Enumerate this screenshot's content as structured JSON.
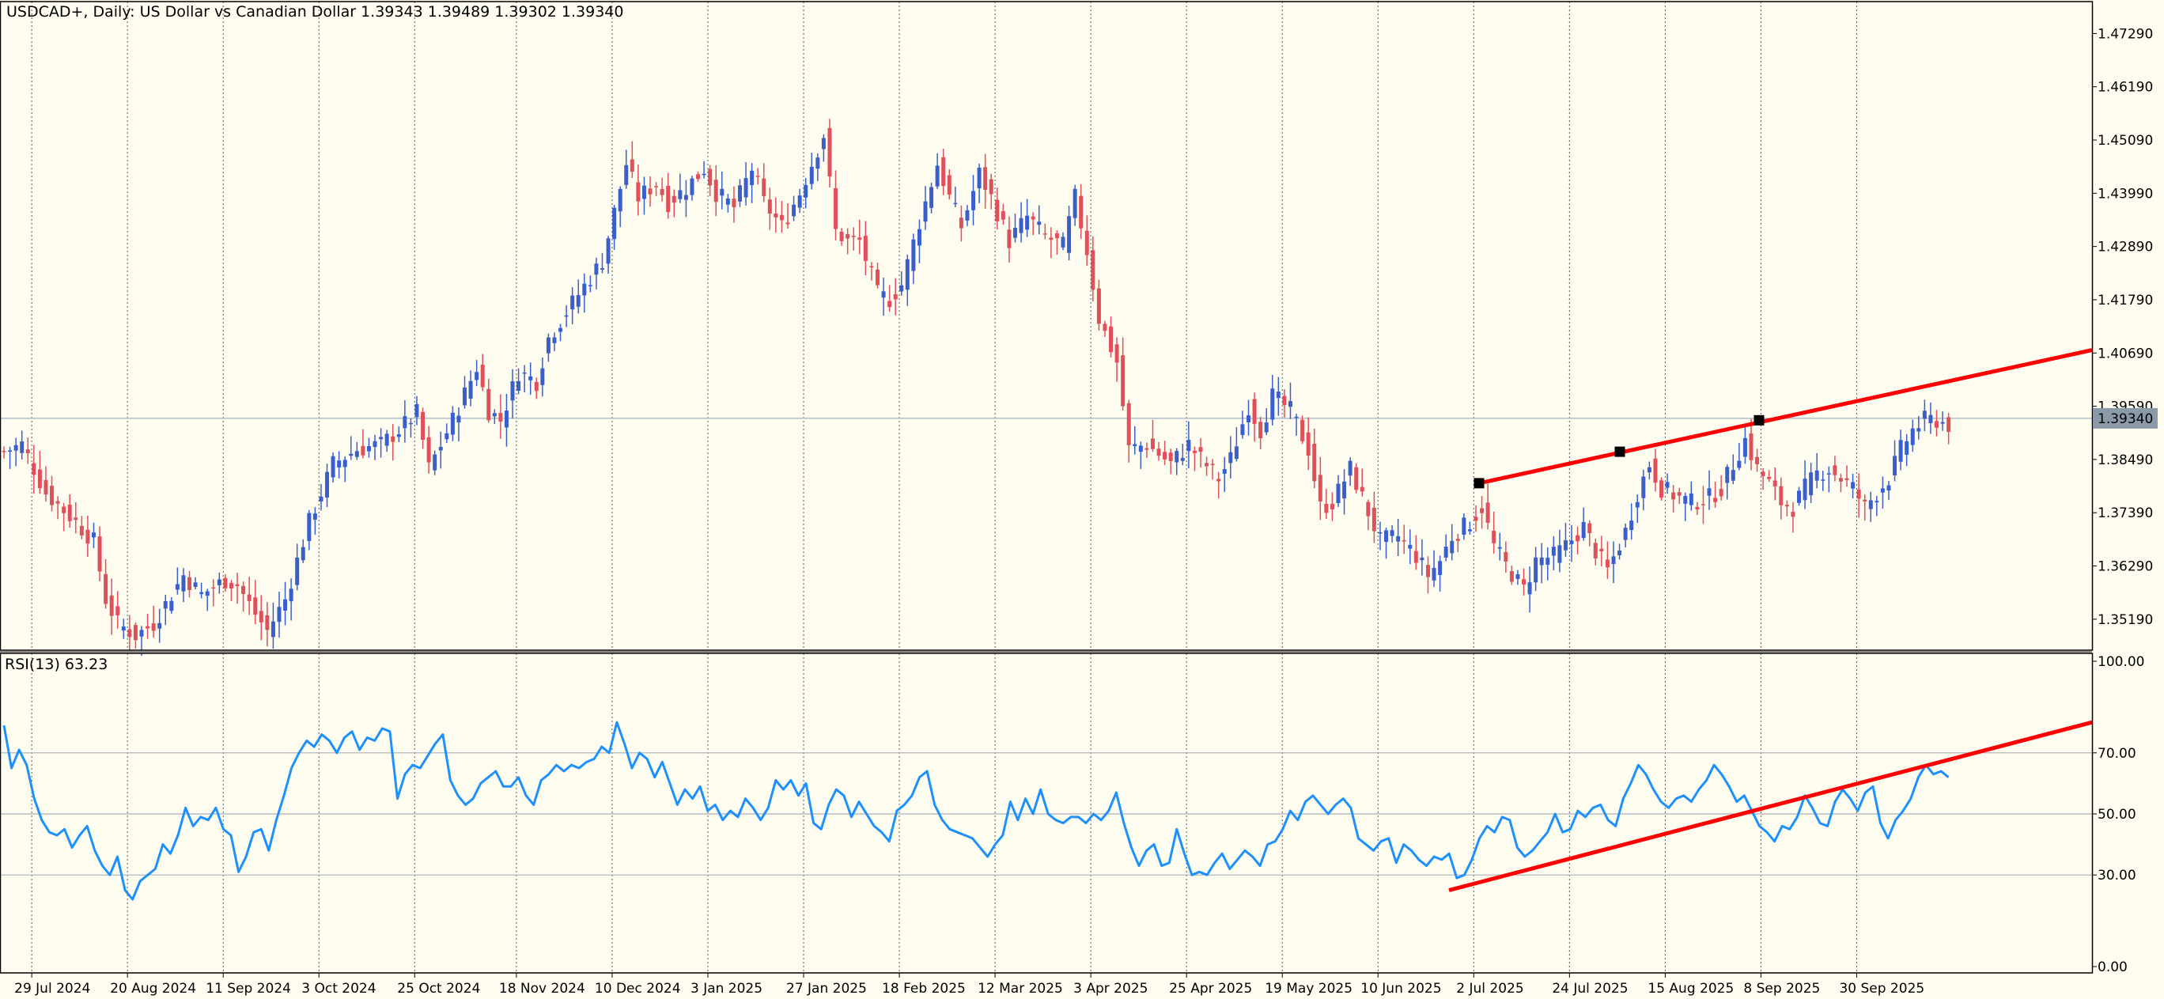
{
  "header": {
    "title": "USDCAD+, Daily:  US Dollar vs Canadian Dollar  1.39343 1.39489 1.39302 1.39340"
  },
  "rsi_header": "RSI(13) 63.23",
  "colors": {
    "background": "#fffcf0",
    "bull": "#3a5fcd",
    "bear": "#e0505a",
    "rsi_line": "#1e90ff",
    "trendline": "#ff0000",
    "grid": "#555555",
    "bid_line": "#b0bcc8",
    "price_label_bg": "#8a9aa8"
  },
  "price_axis": {
    "ticks": [
      "1.47290",
      "1.46190",
      "1.45090",
      "1.43990",
      "1.42890",
      "1.41790",
      "1.40690",
      "1.39590",
      "1.38490",
      "1.37390",
      "1.36290",
      "1.35190"
    ],
    "current_label": "1.39340",
    "ylim": [
      1.3455,
      1.4795
    ]
  },
  "rsi_axis": {
    "ticks": [
      "100.00",
      "70.00",
      "50.00",
      "30.00",
      "0.00"
    ],
    "levels": [
      70,
      50,
      30
    ],
    "ylim": [
      0,
      100
    ]
  },
  "time_axis": {
    "labels": [
      "29 Jul 2024",
      "20 Aug 2024",
      "11 Sep 2024",
      "3 Oct 2024",
      "25 Oct 2024",
      "18 Nov 2024",
      "10 Dec 2024",
      "3 Jan 2025",
      "27 Jan 2025",
      "18 Feb 2025",
      "12 Mar 2025",
      "3 Apr 2025",
      "25 Apr 2025",
      "19 May 2025",
      "10 Jun 2025",
      "2 Jul 2025",
      "24 Jul 2025",
      "15 Aug 2025",
      "8 Sep 2025",
      "30 Sep 2025"
    ]
  },
  "chart_data": [
    {
      "type": "candlestick",
      "symbol": "USDCAD+",
      "timeframe": "Daily",
      "title": "USDCAD+, Daily:  US Dollar vs Canadian Dollar",
      "last_ohlc": {
        "open": 1.39343,
        "high": 1.39489,
        "low": 1.39302,
        "close": 1.3934
      },
      "close_path": [
        [
          0,
          1.3865
        ],
        [
          3,
          1.388
        ],
        [
          7,
          1.378
        ],
        [
          12,
          1.372
        ],
        [
          15,
          1.368
        ],
        [
          17,
          1.356
        ],
        [
          19,
          1.351
        ],
        [
          22,
          1.3485
        ],
        [
          25,
          1.351
        ],
        [
          28,
          1.357
        ],
        [
          30,
          1.361
        ],
        [
          33,
          1.357
        ],
        [
          37,
          1.36
        ],
        [
          39,
          1.359
        ],
        [
          42,
          1.353
        ],
        [
          44,
          1.3495
        ],
        [
          47,
          1.356
        ],
        [
          51,
          1.372
        ],
        [
          55,
          1.384
        ],
        [
          59,
          1.387
        ],
        [
          63,
          1.388
        ],
        [
          66,
          1.391
        ],
        [
          69,
          1.3945
        ],
        [
          71,
          1.383
        ],
        [
          75,
          1.393
        ],
        [
          79,
          1.404
        ],
        [
          81,
          1.395
        ],
        [
          83,
          1.393
        ],
        [
          86,
          1.403
        ],
        [
          89,
          1.401
        ],
        [
          91,
          1.41
        ],
        [
          96,
          1.419
        ],
        [
          100,
          1.426
        ],
        [
          102,
          1.436
        ],
        [
          104,
          1.446
        ],
        [
          106,
          1.439
        ],
        [
          109,
          1.442
        ],
        [
          111,
          1.438
        ],
        [
          114,
          1.441
        ],
        [
          117,
          1.445
        ],
        [
          119,
          1.44
        ],
        [
          122,
          1.437
        ],
        [
          125,
          1.445
        ],
        [
          127,
          1.438
        ],
        [
          130,
          1.433
        ],
        [
          133,
          1.44
        ],
        [
          137,
          1.452
        ],
        [
          139,
          1.432
        ],
        [
          141,
          1.43
        ],
        [
          143,
          1.43
        ],
        [
          146,
          1.419
        ],
        [
          148,
          1.418
        ],
        [
          150,
          1.421
        ],
        [
          153,
          1.434
        ],
        [
          156,
          1.446
        ],
        [
          158,
          1.439
        ],
        [
          160,
          1.433
        ],
        [
          163,
          1.444
        ],
        [
          165,
          1.439
        ],
        [
          168,
          1.43
        ],
        [
          171,
          1.435
        ],
        [
          174,
          1.431
        ],
        [
          177,
          1.429
        ],
        [
          179,
          1.439
        ],
        [
          181,
          1.428
        ],
        [
          183,
          1.414
        ],
        [
          186,
          1.405
        ],
        [
          188,
          1.387
        ],
        [
          191,
          1.388
        ],
        [
          193,
          1.386
        ],
        [
          195,
          1.384
        ],
        [
          198,
          1.388
        ],
        [
          200,
          1.385
        ],
        [
          203,
          1.381
        ],
        [
          205,
          1.385
        ],
        [
          208,
          1.396
        ],
        [
          210,
          1.391
        ],
        [
          212,
          1.398
        ],
        [
          215,
          1.395
        ],
        [
          218,
          1.387
        ],
        [
          220,
          1.375
        ],
        [
          222,
          1.376
        ],
        [
          225,
          1.383
        ],
        [
          228,
          1.374
        ],
        [
          230,
          1.368
        ],
        [
          233,
          1.369
        ],
        [
          236,
          1.365
        ],
        [
          238,
          1.361
        ],
        [
          240,
          1.364
        ],
        [
          242,
          1.369
        ],
        [
          245,
          1.372
        ],
        [
          247,
          1.375
        ],
        [
          249,
          1.367
        ],
        [
          251,
          1.363
        ],
        [
          254,
          1.358
        ],
        [
          256,
          1.364
        ],
        [
          259,
          1.365
        ],
        [
          261,
          1.367
        ],
        [
          264,
          1.371
        ],
        [
          266,
          1.366
        ],
        [
          268,
          1.362
        ],
        [
          271,
          1.37
        ],
        [
          273,
          1.378
        ],
        [
          275,
          1.384
        ],
        [
          277,
          1.379
        ],
        [
          280,
          1.377
        ],
        [
          282,
          1.376
        ],
        [
          285,
          1.377
        ],
        [
          287,
          1.379
        ],
        [
          289,
          1.384
        ],
        [
          291,
          1.389
        ],
        [
          293,
          1.383
        ],
        [
          295,
          1.38
        ],
        [
          297,
          1.376
        ],
        [
          299,
          1.375
        ],
        [
          301,
          1.379
        ],
        [
          303,
          1.382
        ],
        [
          305,
          1.383
        ],
        [
          307,
          1.381
        ],
        [
          309,
          1.379
        ],
        [
          311,
          1.375
        ],
        [
          313,
          1.378
        ],
        [
          315,
          1.381
        ],
        [
          317,
          1.387
        ],
        [
          319,
          1.391
        ],
        [
          321,
          1.393
        ],
        [
          323,
          1.393
        ],
        [
          325,
          1.392
        ]
      ]
    },
    {
      "type": "line",
      "name": "RSI(13)",
      "last_value": 63.23,
      "ylim": [
        0,
        100
      ],
      "levels": [
        70,
        50,
        30
      ],
      "series": {
        "values": [
          79,
          65,
          71,
          66,
          55,
          48,
          44,
          43,
          45,
          39,
          43,
          46,
          38,
          33,
          30,
          36,
          25,
          22,
          28,
          30,
          32,
          40,
          37,
          43,
          52,
          46,
          49,
          48,
          52,
          45,
          43,
          31,
          36,
          44,
          45,
          38,
          48,
          56,
          65,
          70,
          74,
          72,
          76,
          74,
          70,
          75,
          77,
          71,
          75,
          74,
          78,
          77,
          55,
          63,
          66,
          65,
          69,
          73,
          76,
          61,
          56,
          53,
          55,
          60,
          62,
          64,
          59,
          59,
          62,
          56,
          53,
          61,
          63,
          66,
          64,
          66,
          65,
          67,
          68,
          72,
          70,
          80,
          73,
          65,
          70,
          68,
          62,
          67,
          60,
          53,
          58,
          55,
          59,
          51,
          53,
          48,
          51,
          49,
          55,
          52,
          48,
          52,
          61,
          58,
          61,
          56,
          60,
          47,
          45,
          53,
          58,
          56,
          49,
          54,
          50,
          46,
          44,
          41,
          51,
          53,
          56,
          62,
          64,
          53,
          48,
          45,
          44,
          43,
          42,
          39,
          36,
          40,
          43,
          54,
          48,
          55,
          50,
          58,
          50,
          48,
          47,
          49,
          49,
          47,
          50,
          48,
          51,
          57,
          47,
          39,
          33,
          38,
          40,
          33,
          34,
          45,
          37,
          30,
          31,
          30,
          34,
          37,
          32,
          35,
          38,
          36,
          33,
          40,
          41,
          45,
          51,
          48,
          54,
          56,
          53,
          50,
          53,
          55,
          52,
          42,
          40,
          38,
          41,
          42,
          34,
          40,
          38,
          35,
          33,
          36,
          35,
          37,
          29,
          30,
          35,
          42,
          46,
          44,
          49,
          48,
          39,
          36,
          38,
          41,
          44,
          50,
          44,
          45,
          51,
          49,
          52,
          53,
          48,
          46,
          55,
          60,
          66,
          63,
          58,
          54,
          52,
          55,
          56,
          54,
          58,
          61,
          66,
          63,
          59,
          54,
          56,
          51,
          46,
          44,
          41,
          46,
          45,
          49,
          56,
          52,
          47,
          46,
          54,
          58,
          55,
          51,
          57,
          59,
          47,
          42,
          48,
          51,
          55,
          62,
          66,
          63,
          64,
          62
        ]
      }
    }
  ]
}
